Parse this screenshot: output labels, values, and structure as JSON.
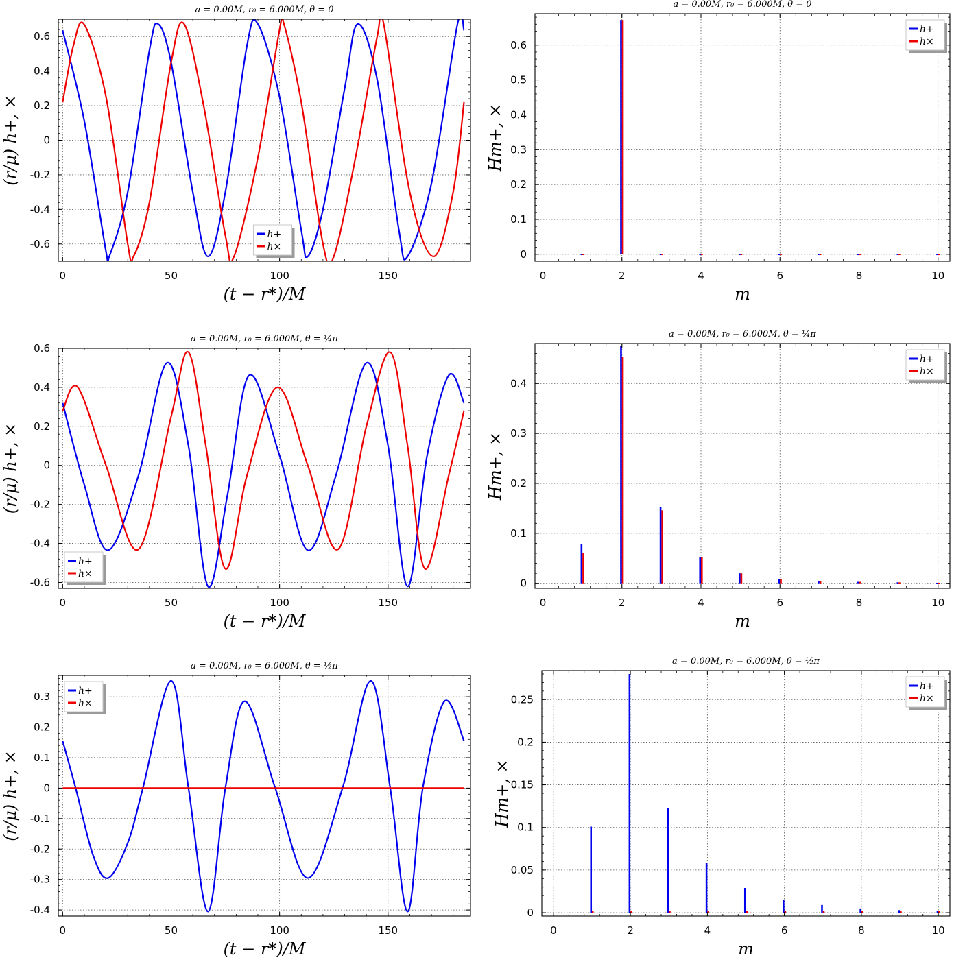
{
  "colors": {
    "plus": "#0000ee",
    "cross": "#ee0000"
  },
  "chart_data": [
    {
      "type": "line",
      "title": "a = 0.00M,    r₀ = 6.000M,    θ = 0",
      "xlabel": "(t − r*)/M",
      "ylabel": "(r/μ) h+, ×",
      "xlim": [
        -2,
        188
      ],
      "ylim": [
        -0.7,
        0.7
      ],
      "xticks": [
        0,
        50,
        100,
        150
      ],
      "yticks": [
        -0.6,
        -0.4,
        -0.2,
        0,
        0.2,
        0.4,
        0.6
      ],
      "ytick_labels": [
        "-0.6",
        "-0.4",
        "-0.2",
        "0",
        "0.2",
        "0.4",
        "0.6"
      ],
      "grid": true,
      "legend": "lower-center",
      "series": [
        {
          "name": "h+",
          "color": "#0000ee",
          "x": [
            0,
            10,
            20,
            21.5,
            30,
            40,
            44,
            50,
            60,
            67,
            75,
            85,
            90,
            100,
            110,
            113,
            120,
            130,
            136,
            145,
            155,
            159,
            170,
            182,
            185
          ],
          "y": [
            0.636,
            0.11,
            -0.645,
            -0.672,
            -0.3,
            0.52,
            0.672,
            0.45,
            -0.3,
            -0.672,
            -0.3,
            0.55,
            0.672,
            0.25,
            -0.52,
            -0.672,
            -0.4,
            0.3,
            0.672,
            0.35,
            -0.52,
            -0.672,
            -0.25,
            0.672,
            0.636
          ]
        },
        {
          "name": "h×",
          "color": "#ee0000",
          "x": [
            0,
            5,
            10,
            20,
            30,
            32.7,
            40,
            50,
            56,
            65,
            75,
            79,
            90,
            100,
            102,
            110,
            120,
            125,
            135,
            145,
            148,
            160,
            171,
            180,
            185
          ],
          "y": [
            0.22,
            0.55,
            0.668,
            0.25,
            -0.6,
            -0.672,
            -0.36,
            0.45,
            0.672,
            0.2,
            -0.55,
            -0.672,
            -0.1,
            0.64,
            0.672,
            0.22,
            -0.6,
            -0.672,
            -0.1,
            0.6,
            0.672,
            -0.3,
            -0.672,
            -0.3,
            0.22
          ]
        }
      ]
    },
    {
      "type": "bar",
      "title": "a = 0.00M,    r₀ = 6.000M,    θ = 0",
      "xlabel": "m",
      "ylabel": "Hm+, ×",
      "xlim": [
        -0.2,
        10.3
      ],
      "ylim": [
        -0.02,
        0.69
      ],
      "xticks": [
        0,
        2,
        4,
        6,
        8,
        10
      ],
      "yticks": [
        0,
        0.1,
        0.2,
        0.3,
        0.4,
        0.5,
        0.6
      ],
      "ytick_labels": [
        "0",
        "0.1",
        "0.2",
        "0.3",
        "0.4",
        "0.5",
        "0.6"
      ],
      "grid": true,
      "legend": "top-right",
      "categories": [
        1,
        2,
        3,
        4,
        5,
        6,
        7,
        8,
        9,
        10
      ],
      "series": [
        {
          "name": "h+",
          "color": "#0000ee",
          "values": [
            0,
            0.672,
            0,
            0,
            0,
            0,
            0,
            0,
            0,
            0
          ]
        },
        {
          "name": "h×",
          "color": "#ee0000",
          "values": [
            0,
            0.672,
            0,
            0,
            0,
            0,
            0,
            0,
            0,
            0
          ]
        }
      ]
    },
    {
      "type": "line",
      "title": "a = 0.00M,    r₀ = 6.000M,    θ = ¼π",
      "xlabel": "(t − r*)/M",
      "ylabel": "(r/μ) h+, ×",
      "xlim": [
        -2,
        188
      ],
      "ylim": [
        -0.63,
        0.6
      ],
      "xticks": [
        0,
        50,
        100,
        150
      ],
      "yticks": [
        -0.6,
        -0.4,
        -0.2,
        0,
        0.2,
        0.4,
        0.6
      ],
      "ytick_labels": [
        "-0.6",
        "-0.4",
        "-0.2",
        "0",
        "0.2",
        "0.4",
        "0.6"
      ],
      "grid": true,
      "legend": "lower-left",
      "series": [
        {
          "name": "h+",
          "color": "#0000ee",
          "x": [
            0,
            10,
            21,
            35,
            48,
            58,
            67,
            76,
            86,
            100,
            113,
            126,
            140,
            150,
            159,
            168,
            178,
            185
          ],
          "y": [
            0.32,
            -0.1,
            -0.435,
            -0.05,
            0.525,
            0.1,
            -0.62,
            -0.15,
            0.462,
            0.05,
            -0.435,
            -0.05,
            0.525,
            0.1,
            -0.62,
            0.05,
            0.462,
            0.32
          ]
        },
        {
          "name": "h×",
          "color": "#ee0000",
          "x": [
            0,
            7,
            20,
            35,
            50,
            58,
            66,
            75,
            85,
            99,
            113,
            127,
            140,
            151,
            159,
            167,
            178,
            185
          ],
          "y": [
            0.28,
            0.4,
            0.0,
            -0.43,
            0.25,
            0.58,
            0.1,
            -0.53,
            -0.05,
            0.4,
            0.0,
            -0.43,
            0.2,
            0.58,
            0.1,
            -0.53,
            -0.05,
            0.28
          ]
        }
      ]
    },
    {
      "type": "bar",
      "title": "a = 0.00M,    r₀ = 6.000M,    θ = ¼π",
      "xlabel": "m",
      "ylabel": "Hm+, ×",
      "xlim": [
        -0.2,
        10.3
      ],
      "ylim": [
        -0.01,
        0.48
      ],
      "xticks": [
        0,
        2,
        4,
        6,
        8,
        10
      ],
      "yticks": [
        0,
        0.1,
        0.2,
        0.3,
        0.4
      ],
      "ytick_labels": [
        "0",
        "0.1",
        "0.2",
        "0.3",
        "0.4"
      ],
      "grid": true,
      "legend": "top-right",
      "categories": [
        1,
        2,
        3,
        4,
        5,
        6,
        7,
        8,
        9,
        10
      ],
      "series": [
        {
          "name": "h+",
          "color": "#0000ee",
          "values": [
            0.078,
            0.475,
            0.152,
            0.053,
            0.02,
            0.009,
            0.005,
            0.003,
            0.002,
            0.001
          ]
        },
        {
          "name": "h×",
          "color": "#ee0000",
          "values": [
            0.06,
            0.453,
            0.146,
            0.052,
            0.02,
            0.009,
            0.005,
            0.003,
            0.002,
            0.001
          ]
        }
      ]
    },
    {
      "type": "line",
      "title": "a = 0.00M,    r₀ = 6.000M,    θ = ½π",
      "xlabel": "(t − r*)/M",
      "ylabel": "(r/μ) h+, ×",
      "xlim": [
        -2,
        188
      ],
      "ylim": [
        -0.42,
        0.37
      ],
      "xticks": [
        0,
        50,
        100,
        150
      ],
      "yticks": [
        -0.4,
        -0.3,
        -0.2,
        -0.1,
        0,
        0.1,
        0.2,
        0.3
      ],
      "ytick_labels": [
        "-0.4",
        "-0.3",
        "-0.2",
        "-0.1",
        "0",
        "0.1",
        "0.2",
        "0.3"
      ],
      "grid": true,
      "legend": "top-left",
      "series": [
        {
          "name": "h+",
          "color": "#0000ee",
          "x": [
            0,
            6,
            14,
            21,
            30,
            37,
            50,
            58,
            67,
            75,
            84,
            98,
            113,
            129,
            142,
            151,
            159,
            166,
            176,
            185
          ],
          "y": [
            0.155,
            0.0,
            -0.22,
            -0.295,
            -0.18,
            0.0,
            0.352,
            0.0,
            -0.405,
            0.0,
            0.285,
            0.0,
            -0.295,
            0.0,
            0.352,
            0.0,
            -0.405,
            0.0,
            0.285,
            0.155
          ]
        },
        {
          "name": "h×",
          "color": "#ee0000",
          "x": [
            0,
            185
          ],
          "y": [
            0,
            0
          ]
        }
      ]
    },
    {
      "type": "bar",
      "title": "a = 0.00M,    r₀ = 6.000M,    θ = ½π",
      "xlabel": "m",
      "ylabel": "Hm+, ×",
      "xlim": [
        -0.3,
        10.3
      ],
      "ylim": [
        -0.004,
        0.284
      ],
      "xticks": [
        0,
        2,
        4,
        6,
        8,
        10
      ],
      "yticks": [
        0,
        0.05,
        0.1,
        0.15,
        0.2,
        0.25
      ],
      "ytick_labels": [
        "0",
        "0.05",
        "0.1",
        "0.15",
        "0.2",
        "0.25"
      ],
      "grid": true,
      "legend": "top-right",
      "categories": [
        1,
        2,
        3,
        4,
        5,
        6,
        7,
        8,
        9,
        10
      ],
      "series": [
        {
          "name": "h+",
          "color": "#0000ee",
          "values": [
            0.101,
            0.28,
            0.123,
            0.058,
            0.029,
            0.015,
            0.009,
            0.005,
            0.003,
            0.002
          ]
        },
        {
          "name": "h×",
          "color": "#ee0000",
          "values": [
            0.002,
            0.002,
            0.002,
            0.002,
            0.002,
            0.002,
            0.002,
            0.002,
            0.002,
            0.002
          ]
        }
      ]
    }
  ]
}
